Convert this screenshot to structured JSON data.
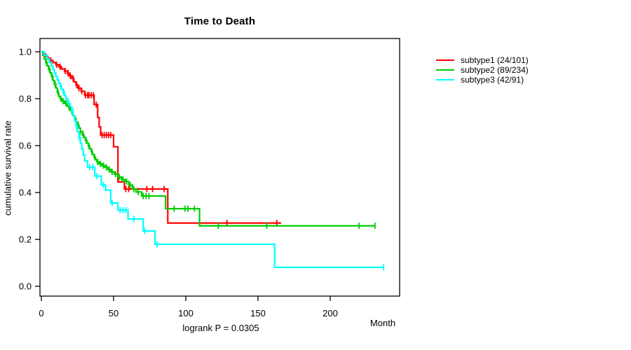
{
  "header": {
    "title": "Time to Death"
  },
  "footer": {
    "note": "logrank P = 0.0305"
  },
  "axes": {
    "x": {
      "unit_label": "Month",
      "ticks": [
        0,
        50,
        100,
        150,
        200
      ],
      "lim": [
        0,
        248
      ]
    },
    "y": {
      "label": "cumulative survival rate",
      "ticks": [
        "0.0",
        "0.2",
        "0.4",
        "0.6",
        "0.8",
        "1.0"
      ],
      "tick_values": [
        0.0,
        0.2,
        0.4,
        0.6,
        0.8,
        1.0
      ],
      "lim": [
        0.0,
        1.0
      ]
    }
  },
  "legend": {
    "position": "right",
    "items": [
      {
        "label": "subtype1 (24/101)",
        "color": "#ff0000"
      },
      {
        "label": "subtype2 (89/234)",
        "color": "#00cc00"
      },
      {
        "label": "subtype3 (42/91)",
        "color": "#00ffff"
      }
    ]
  },
  "chart_data": {
    "type": "line",
    "subtype": "kaplan-meier-step",
    "title": "Time to Death",
    "xlabel": "Month",
    "ylabel": "cumulative survival rate",
    "xlim": [
      0,
      248
    ],
    "ylim": [
      0.0,
      1.0
    ],
    "grid": false,
    "annotation": "logrank P = 0.0305",
    "series": [
      {
        "name": "subtype1",
        "events_over_n": "24/101",
        "color": "#ff0000",
        "steps": [
          [
            0,
            1.0
          ],
          [
            1.5,
            0.99
          ],
          [
            3,
            0.98
          ],
          [
            4.5,
            0.972
          ],
          [
            6,
            0.963
          ],
          [
            8,
            0.954
          ],
          [
            10,
            0.945
          ],
          [
            12,
            0.936
          ],
          [
            14,
            0.927
          ],
          [
            16,
            0.918
          ],
          [
            18,
            0.909
          ],
          [
            19.5,
            0.898
          ],
          [
            21,
            0.886
          ],
          [
            22.5,
            0.872
          ],
          [
            24,
            0.858
          ],
          [
            25.5,
            0.845
          ],
          [
            27.5,
            0.832
          ],
          [
            30,
            0.815
          ],
          [
            36.5,
            0.775
          ],
          [
            39,
            0.72
          ],
          [
            40,
            0.68
          ],
          [
            41,
            0.645
          ],
          [
            50,
            0.595
          ],
          [
            53,
            0.445
          ],
          [
            57.5,
            0.415
          ],
          [
            87.5,
            0.27
          ]
        ],
        "end_month": 166,
        "censor_months": [
          6.5,
          10.5,
          13,
          16.5,
          18.5,
          20,
          22,
          24.5,
          26,
          28,
          30.5,
          32,
          33,
          34.5,
          36,
          38,
          42,
          43.5,
          45,
          46.5,
          48,
          58.5,
          60.5,
          73,
          77,
          85,
          128.5,
          163
        ]
      },
      {
        "name": "subtype2",
        "events_over_n": "89/234",
        "color": "#00cc00",
        "steps": [
          [
            0,
            1.0
          ],
          [
            1,
            0.985
          ],
          [
            2,
            0.97
          ],
          [
            3,
            0.955
          ],
          [
            4,
            0.94
          ],
          [
            5,
            0.925
          ],
          [
            6,
            0.91
          ],
          [
            7,
            0.895
          ],
          [
            8,
            0.878
          ],
          [
            9,
            0.862
          ],
          [
            10,
            0.846
          ],
          [
            11,
            0.828
          ],
          [
            12,
            0.81
          ],
          [
            13,
            0.8
          ],
          [
            14,
            0.79
          ],
          [
            16,
            0.78
          ],
          [
            18,
            0.768
          ],
          [
            19,
            0.76
          ],
          [
            20,
            0.752
          ],
          [
            21,
            0.74
          ],
          [
            22,
            0.728
          ],
          [
            23,
            0.715
          ],
          [
            24,
            0.7
          ],
          [
            25,
            0.688
          ],
          [
            26,
            0.675
          ],
          [
            27,
            0.66
          ],
          [
            28.5,
            0.645
          ],
          [
            29.5,
            0.635
          ],
          [
            30.5,
            0.622
          ],
          [
            31.5,
            0.61
          ],
          [
            32.5,
            0.598
          ],
          [
            33.5,
            0.586
          ],
          [
            34.5,
            0.574
          ],
          [
            35.5,
            0.562
          ],
          [
            36.5,
            0.55
          ],
          [
            37.5,
            0.54
          ],
          [
            38.5,
            0.53
          ],
          [
            40,
            0.522
          ],
          [
            42,
            0.515
          ],
          [
            44,
            0.508
          ],
          [
            46,
            0.498
          ],
          [
            48,
            0.488
          ],
          [
            50.5,
            0.478
          ],
          [
            53,
            0.466
          ],
          [
            55.5,
            0.455
          ],
          [
            58,
            0.447
          ],
          [
            60.5,
            0.432
          ],
          [
            63,
            0.415
          ],
          [
            65.5,
            0.402
          ],
          [
            69.5,
            0.385
          ],
          [
            86,
            0.331
          ],
          [
            109.5,
            0.258
          ]
        ],
        "end_month": 231,
        "censor_months": [
          3.5,
          5.5,
          7.5,
          9.5,
          11.5,
          13.5,
          15,
          17,
          19.5,
          21.5,
          23.5,
          25.5,
          27,
          29,
          31,
          33,
          35,
          37,
          39,
          41,
          43,
          45,
          47,
          49,
          51.5,
          54,
          56.5,
          59,
          61.5,
          64,
          67,
          70.5,
          72.5,
          74.5,
          92,
          99.5,
          101.5,
          106,
          122.5,
          156,
          220,
          231
        ]
      },
      {
        "name": "subtype3",
        "events_over_n": "42/91",
        "color": "#00ffff",
        "steps": [
          [
            0,
            1.0
          ],
          [
            2,
            0.985
          ],
          [
            4,
            0.97
          ],
          [
            5.5,
            0.955
          ],
          [
            7,
            0.94
          ],
          [
            8,
            0.925
          ],
          [
            9,
            0.91
          ],
          [
            10,
            0.895
          ],
          [
            11,
            0.88
          ],
          [
            12,
            0.866
          ],
          [
            13,
            0.853
          ],
          [
            14,
            0.84
          ],
          [
            15,
            0.827
          ],
          [
            16,
            0.813
          ],
          [
            17,
            0.8
          ],
          [
            18,
            0.789
          ],
          [
            19,
            0.778
          ],
          [
            20,
            0.765
          ],
          [
            21,
            0.748
          ],
          [
            22,
            0.728
          ],
          [
            23,
            0.706
          ],
          [
            24,
            0.682
          ],
          [
            25,
            0.658
          ],
          [
            26,
            0.634
          ],
          [
            27,
            0.61
          ],
          [
            28,
            0.585
          ],
          [
            29,
            0.56
          ],
          [
            30,
            0.535
          ],
          [
            32,
            0.508
          ],
          [
            37,
            0.47
          ],
          [
            41.5,
            0.432
          ],
          [
            44.5,
            0.41
          ],
          [
            48,
            0.355
          ],
          [
            53,
            0.325
          ],
          [
            60,
            0.287
          ],
          [
            70.5,
            0.236
          ],
          [
            78.7,
            0.179
          ],
          [
            161.5,
            0.081
          ]
        ],
        "end_month": 237,
        "censor_months": [
          13.5,
          15.5,
          18.5,
          21.5,
          24.5,
          26.5,
          33.5,
          35.5,
          38.5,
          43,
          49,
          54.5,
          56.5,
          58.5,
          64,
          71.5,
          80,
          237
        ]
      }
    ]
  }
}
